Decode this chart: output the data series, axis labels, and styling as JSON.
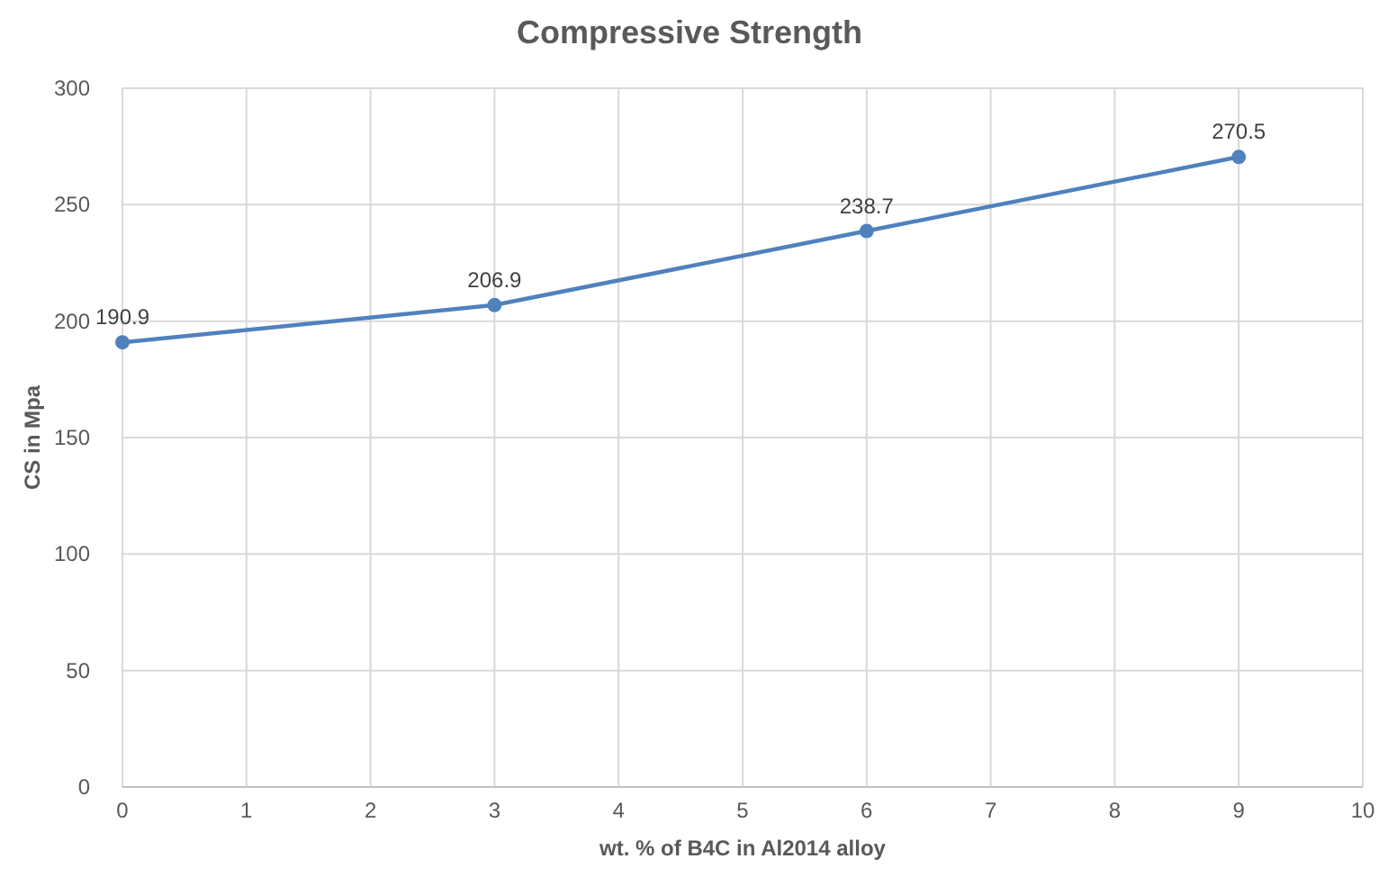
{
  "chart_data": {
    "type": "line",
    "title": "Compressive Strength",
    "xlabel": "wt. % of B4C in Al2014 alloy",
    "ylabel": "CS in Mpa",
    "x": [
      0,
      3,
      6,
      9
    ],
    "series": [
      {
        "color": "#4f81bd",
        "values": [
          190.9,
          206.9,
          238.7,
          270.5
        ]
      }
    ],
    "xlim": [
      0,
      10
    ],
    "xticks": [
      0,
      1,
      2,
      3,
      4,
      5,
      6,
      7,
      8,
      9,
      10
    ],
    "ylim": [
      0,
      300
    ],
    "yticks": [
      0,
      50,
      100,
      150,
      200,
      250,
      300
    ],
    "grid": true,
    "marker": "circle",
    "line_style": "solid",
    "data_labels": true
  }
}
